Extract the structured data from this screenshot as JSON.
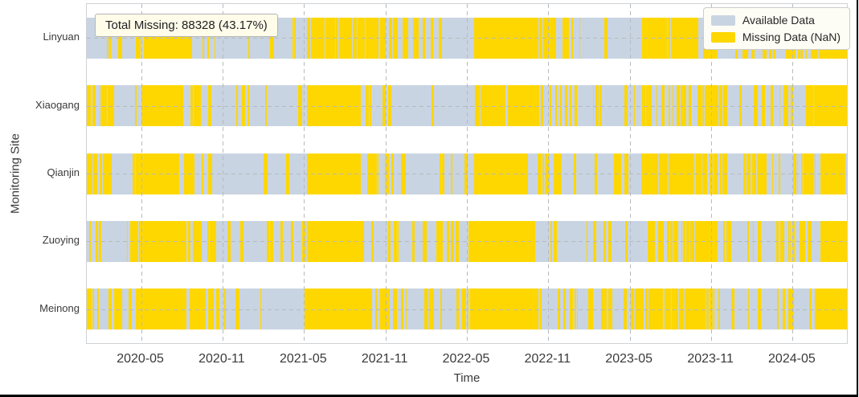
{
  "figure": {
    "annotation_text": "Total Missing: 88328 (43.17%)",
    "legend": [
      {
        "label": "Available Data",
        "color": "#c9d4e2"
      },
      {
        "label": "Missing Data (NaN)",
        "color": "#FFD700"
      }
    ]
  },
  "chart_data": {
    "type": "heatmap",
    "title": "",
    "xlabel": "Time",
    "ylabel": "Monitoring Site",
    "x_ticks": [
      "2020-05",
      "2020-11",
      "2021-05",
      "2021-11",
      "2022-05",
      "2022-11",
      "2023-05",
      "2023-11",
      "2024-05"
    ],
    "x_range": [
      "2020-01",
      "2024-09"
    ],
    "categories": [
      "Linyuan",
      "Xiaogang",
      "Qianjin",
      "Zuoying",
      "Meinong"
    ],
    "total_missing_count": 88328,
    "total_missing_percent": 43.17,
    "colors": {
      "available": "#c9d4e2",
      "missing": "#FFD700",
      "grid": "#b6babf"
    },
    "legend_position": "upper right",
    "grid": true,
    "segment_format": "[start_fraction_of_time_axis, end_fraction, missing_density_0_to_1]",
    "series": [
      {
        "name": "Linyuan",
        "missing_segments": [
          [
            0.0,
            0.045,
            0.45
          ],
          [
            0.045,
            0.075,
            0.2
          ],
          [
            0.075,
            0.13,
            1.0
          ],
          [
            0.13,
            0.17,
            0.5
          ],
          [
            0.17,
            0.29,
            0.12
          ],
          [
            0.29,
            0.37,
            0.95
          ],
          [
            0.37,
            0.42,
            0.7
          ],
          [
            0.42,
            0.51,
            0.25
          ],
          [
            0.51,
            0.59,
            1.0
          ],
          [
            0.59,
            0.64,
            0.6
          ],
          [
            0.64,
            0.73,
            0.3
          ],
          [
            0.73,
            0.83,
            0.88
          ],
          [
            0.83,
            0.92,
            0.35
          ],
          [
            0.92,
            0.965,
            0.7
          ],
          [
            0.965,
            1.0,
            1.0
          ]
        ]
      },
      {
        "name": "Xiaogang",
        "missing_segments": [
          [
            0.0,
            0.072,
            0.4
          ],
          [
            0.072,
            0.127,
            1.0
          ],
          [
            0.127,
            0.165,
            0.55
          ],
          [
            0.165,
            0.29,
            0.12
          ],
          [
            0.29,
            0.36,
            1.0
          ],
          [
            0.36,
            0.4,
            0.6
          ],
          [
            0.4,
            0.51,
            0.2
          ],
          [
            0.51,
            0.59,
            0.95
          ],
          [
            0.59,
            0.625,
            0.5
          ],
          [
            0.625,
            0.73,
            0.22
          ],
          [
            0.73,
            0.84,
            0.85
          ],
          [
            0.84,
            0.92,
            0.3
          ],
          [
            0.92,
            0.96,
            0.55
          ],
          [
            0.96,
            1.0,
            1.0
          ]
        ]
      },
      {
        "name": "Qianjin",
        "missing_segments": [
          [
            0.0,
            0.068,
            0.45
          ],
          [
            0.068,
            0.12,
            1.0
          ],
          [
            0.12,
            0.165,
            0.5
          ],
          [
            0.165,
            0.29,
            0.06
          ],
          [
            0.29,
            0.36,
            1.0
          ],
          [
            0.36,
            0.42,
            0.6
          ],
          [
            0.42,
            0.51,
            0.22
          ],
          [
            0.51,
            0.58,
            1.0
          ],
          [
            0.58,
            0.62,
            0.5
          ],
          [
            0.62,
            0.73,
            0.2
          ],
          [
            0.73,
            0.83,
            0.85
          ],
          [
            0.83,
            0.94,
            0.3
          ],
          [
            0.94,
            1.0,
            0.9
          ]
        ]
      },
      {
        "name": "Zuoying",
        "missing_segments": [
          [
            0.0,
            0.07,
            0.4
          ],
          [
            0.07,
            0.127,
            1.0
          ],
          [
            0.127,
            0.17,
            0.5
          ],
          [
            0.17,
            0.29,
            0.1
          ],
          [
            0.29,
            0.365,
            1.0
          ],
          [
            0.365,
            0.41,
            0.55
          ],
          [
            0.41,
            0.51,
            0.28
          ],
          [
            0.51,
            0.59,
            1.0
          ],
          [
            0.59,
            0.735,
            0.25
          ],
          [
            0.735,
            0.83,
            0.85
          ],
          [
            0.83,
            0.925,
            0.3
          ],
          [
            0.925,
            0.965,
            0.6
          ],
          [
            0.965,
            1.0,
            1.0
          ]
        ]
      },
      {
        "name": "Meinong",
        "missing_segments": [
          [
            0.0,
            0.075,
            0.4
          ],
          [
            0.075,
            0.13,
            1.0
          ],
          [
            0.13,
            0.166,
            0.5
          ],
          [
            0.166,
            0.286,
            0.15
          ],
          [
            0.286,
            0.365,
            1.0
          ],
          [
            0.365,
            0.4,
            0.55
          ],
          [
            0.4,
            0.51,
            0.45
          ],
          [
            0.51,
            0.59,
            1.0
          ],
          [
            0.59,
            0.735,
            0.3
          ],
          [
            0.735,
            0.826,
            0.9
          ],
          [
            0.826,
            0.937,
            0.3
          ],
          [
            0.937,
            0.965,
            0.6
          ],
          [
            0.965,
            1.0,
            1.0
          ]
        ]
      }
    ]
  }
}
